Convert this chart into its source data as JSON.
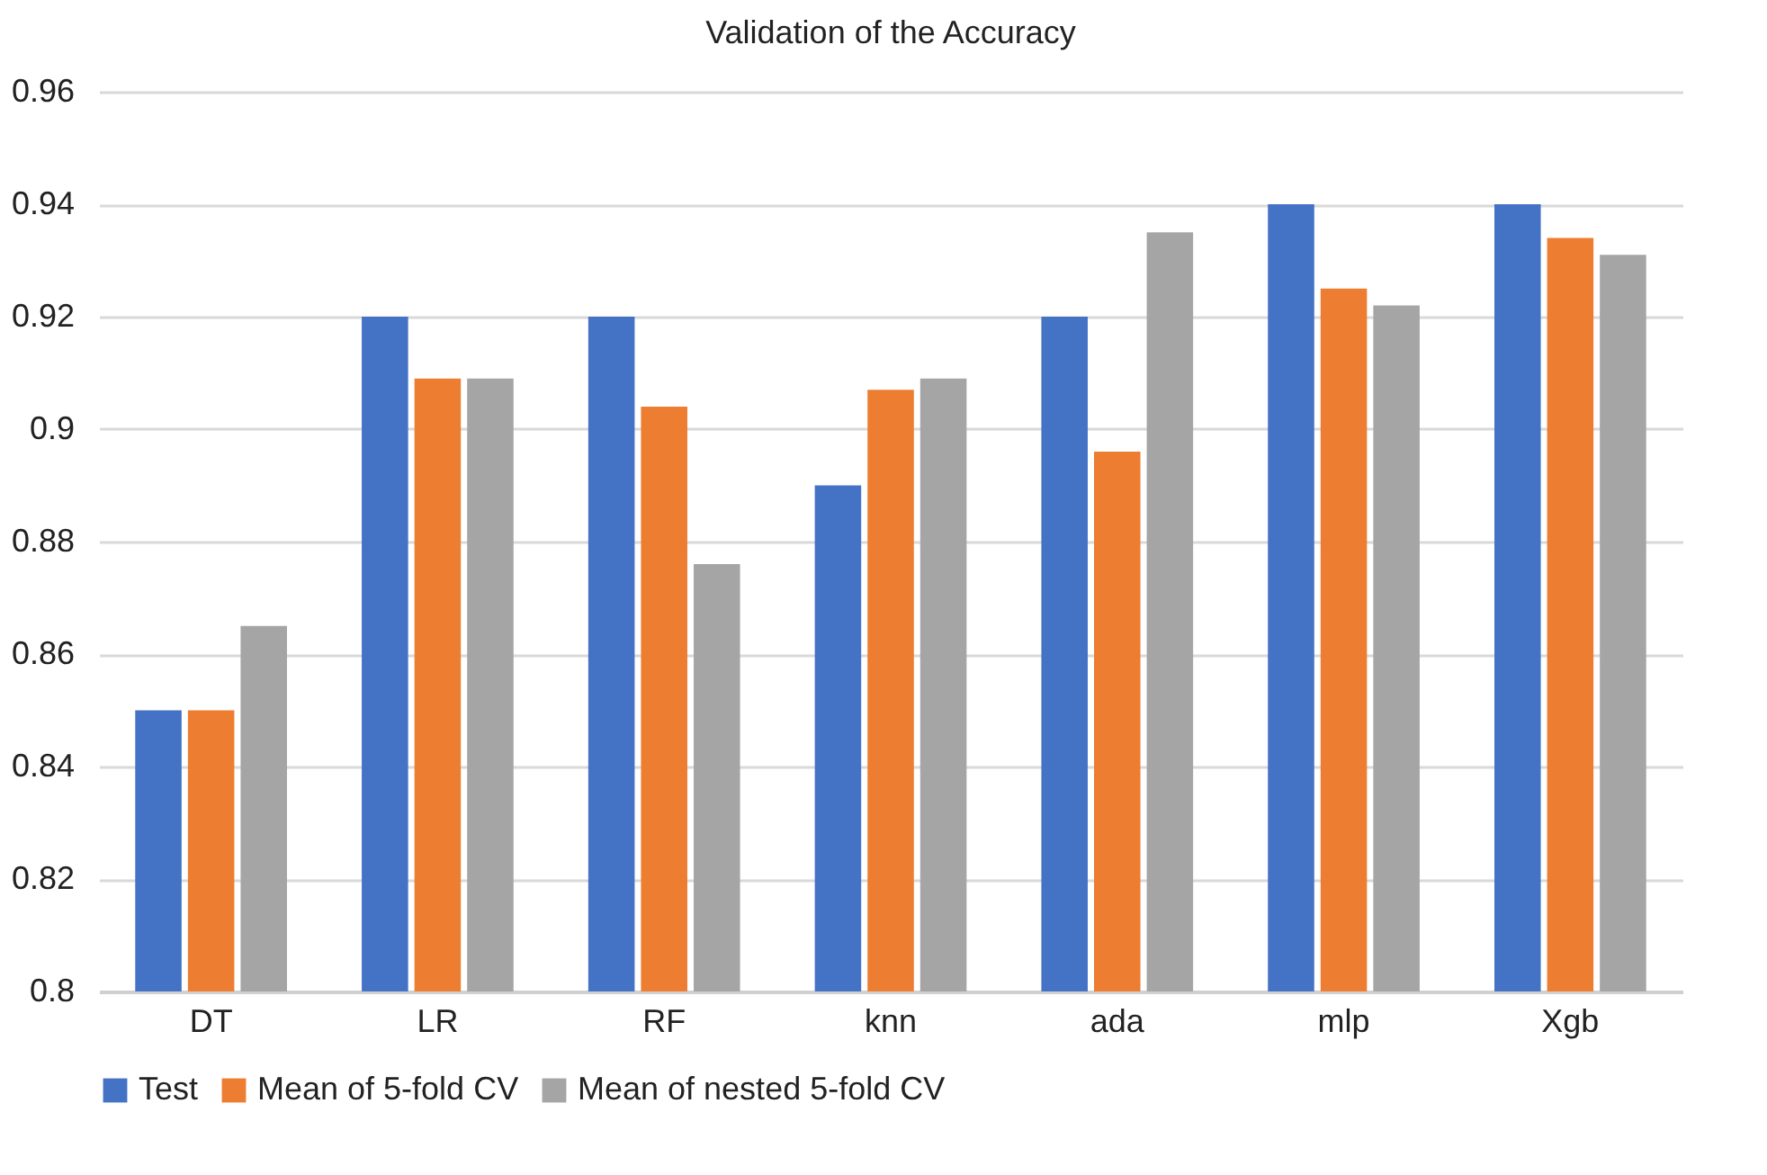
{
  "chart_data": {
    "type": "bar",
    "title": "Validation of the Accuracy",
    "categories": [
      "DT",
      "LR",
      "RF",
      "knn",
      "ada",
      "mlp",
      "Xgb"
    ],
    "series": [
      {
        "name": "Test",
        "color": "#4472c4",
        "values": [
          0.85,
          0.92,
          0.92,
          0.89,
          0.92,
          0.94,
          0.94
        ]
      },
      {
        "name": "Mean of 5-fold CV",
        "color": "#ed7d31",
        "values": [
          0.85,
          0.909,
          0.904,
          0.907,
          0.896,
          0.925,
          0.934
        ]
      },
      {
        "name": "Mean of nested 5-fold CV",
        "color": "#a5a5a5",
        "values": [
          0.865,
          0.909,
          0.876,
          0.909,
          0.935,
          0.922,
          0.931
        ]
      }
    ],
    "ylim": [
      0.8,
      0.96
    ],
    "yticks": [
      0.8,
      0.82,
      0.84,
      0.86,
      0.88,
      0.9,
      0.92,
      0.94,
      0.96
    ],
    "grid": "y",
    "legend": "bottom"
  }
}
